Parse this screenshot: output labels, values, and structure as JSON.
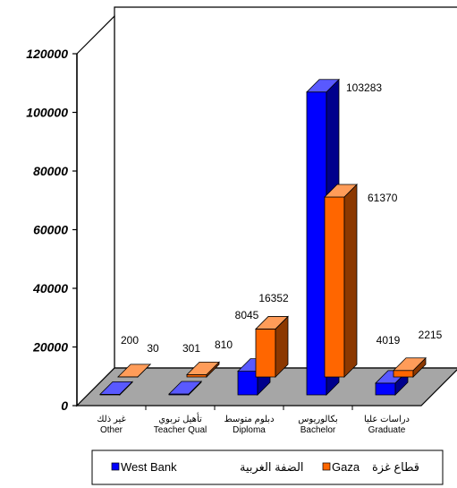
{
  "chart_data": {
    "type": "bar",
    "categories": [
      {
        "arabic": "غير ذلك",
        "english": "Other"
      },
      {
        "arabic": "تأهيل تربوي",
        "english": "Teacher Qual"
      },
      {
        "arabic": "دبلوم متوسط",
        "english": "Diploma"
      },
      {
        "arabic": "بكالوريوس",
        "english": "Bachelor"
      },
      {
        "arabic": "دراسات عليا",
        "english": "Graduate"
      }
    ],
    "series": [
      {
        "name": "West Bank",
        "name_ar": "الضفة الغربية",
        "color": "#0000FF",
        "values": [
          200,
          301,
          8045,
          103283,
          4019
        ]
      },
      {
        "name": "Gaza",
        "name_ar": "قطاع غزة",
        "color": "#FF6600",
        "values": [
          30,
          810,
          16352,
          61370,
          2215
        ]
      }
    ],
    "data_labels": [
      [
        "200",
        "301",
        "8045",
        "103283",
        "4019"
      ],
      [
        "30",
        "810",
        "16352",
        "61370",
        "2215"
      ]
    ],
    "ylim": [
      0,
      120000
    ],
    "yticks": [
      "0",
      "20000",
      "40000",
      "60000",
      "80000",
      "100000",
      "120000"
    ],
    "ytick_values": [
      0,
      20000,
      40000,
      60000,
      80000,
      100000,
      120000
    ],
    "grid": false,
    "legend_position": "bottom",
    "floor_color": "#A6A6A6",
    "three_d": true
  }
}
